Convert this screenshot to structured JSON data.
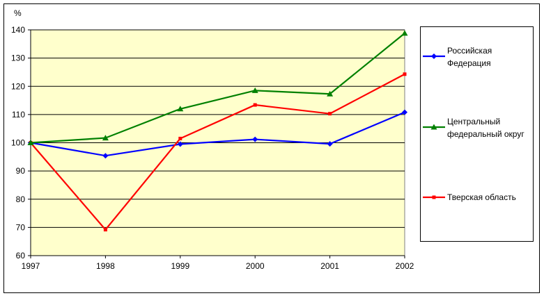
{
  "chart_data": {
    "type": "line",
    "title": "",
    "xlabel": "",
    "ylabel": "%",
    "x": [
      "1997",
      "1998",
      "1999",
      "2000",
      "2001",
      "2002"
    ],
    "ylim": [
      60,
      140
    ],
    "yticks": [
      60,
      70,
      80,
      90,
      100,
      110,
      120,
      130,
      140
    ],
    "grid": "horizontal",
    "plot_background": "#ffffcc",
    "legend_position": "right",
    "series": [
      {
        "name": "Российская Федерация",
        "legend_lines": [
          "Российская",
          "Федерация"
        ],
        "color": "#0000ff",
        "marker": "diamond",
        "values": [
          100,
          95.4,
          99.5,
          101.2,
          99.6,
          110.8
        ]
      },
      {
        "name": "Центральный федеральный округ",
        "legend_lines": [
          "Центральный",
          "федеральный округ"
        ],
        "color": "#008000",
        "marker": "triangle",
        "values": [
          100,
          101.7,
          112,
          118.5,
          117.3,
          138.8
        ]
      },
      {
        "name": "Тверская область",
        "legend_lines": [
          "Тверская область"
        ],
        "color": "#ff0000",
        "marker": "square",
        "values": [
          100,
          69.2,
          101.5,
          113.4,
          110.3,
          124.3
        ]
      }
    ]
  }
}
